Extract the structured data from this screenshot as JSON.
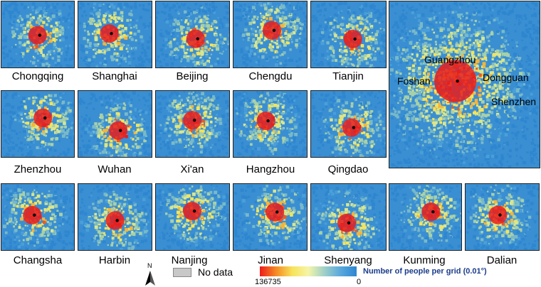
{
  "cities": [
    {
      "name": "Chongqing"
    },
    {
      "name": "Shanghai"
    },
    {
      "name": "Beijing"
    },
    {
      "name": "Chengdu"
    },
    {
      "name": "Tianjin"
    },
    {
      "name": "Zhenzhou"
    },
    {
      "name": "Wuhan"
    },
    {
      "name": "Xi'an"
    },
    {
      "name": "Hangzhou"
    },
    {
      "name": "Qingdao"
    },
    {
      "name": "Changsha"
    },
    {
      "name": "Harbin"
    },
    {
      "name": "Nanjing"
    },
    {
      "name": "Jinan"
    },
    {
      "name": "Shenyang"
    },
    {
      "name": "Kunming"
    },
    {
      "name": "Dalian"
    }
  ],
  "big_map": {
    "labels": [
      "Guangzhou",
      "Foshan",
      "Dongguan",
      "Shenzhen"
    ]
  },
  "legend": {
    "no_data": "No data",
    "north": "N",
    "title": "Number of people per grid (0.01°)",
    "max": "136735",
    "min": "0"
  },
  "colors": {
    "low": "#2e86cf",
    "mid": "#f7e25a",
    "high": "#ee1c1c",
    "no_data": "#c8c8c8"
  }
}
